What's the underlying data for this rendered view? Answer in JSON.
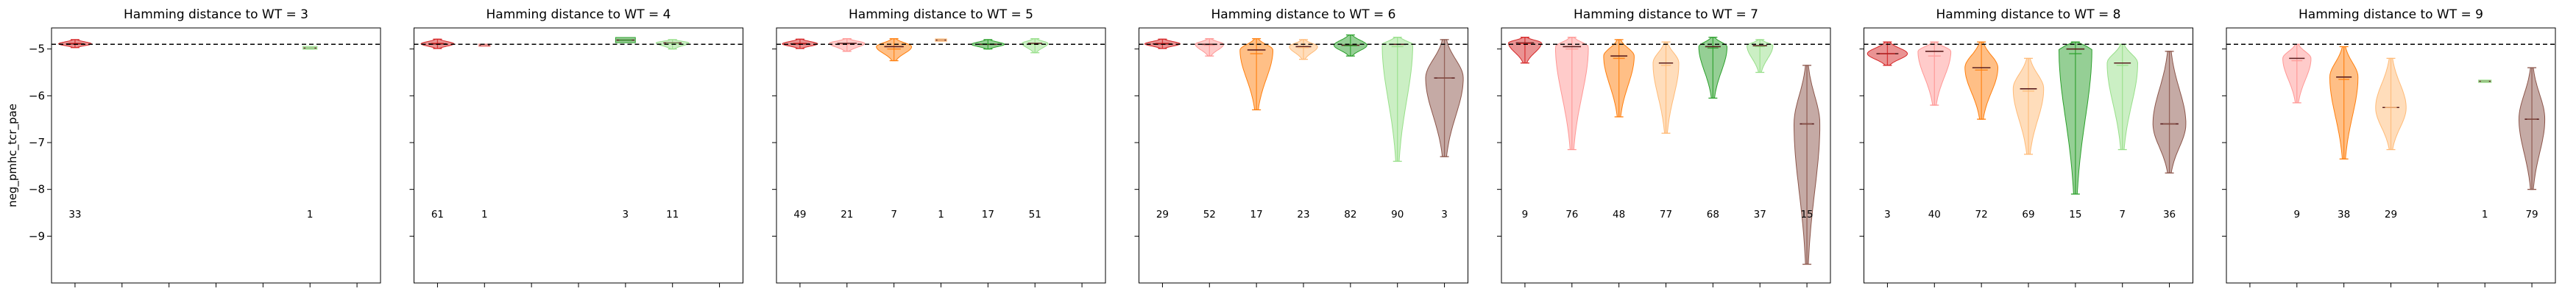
{
  "chart_data": {
    "type": "violin",
    "ylabel": "neg_pmhc_tcr_pae",
    "ylim": [
      -10,
      -4.55
    ],
    "yticks": [
      -9,
      -8,
      -7,
      -6,
      -5
    ],
    "reference_line": -4.9,
    "colors": [
      "#d62728",
      "#ff9896",
      "#ff7f0e",
      "#ffbb78",
      "#2ca02c",
      "#98df8a",
      "#8c564b"
    ],
    "panels": [
      {
        "title": "Hamming distance to WT = 3",
        "groups": [
          {
            "slot": 0,
            "count": "33",
            "min": -4.97,
            "max": -4.8,
            "median": -4.89,
            "mean": -4.88,
            "width": 0.7
          },
          {
            "slot": 5,
            "count": "1",
            "min": -4.99,
            "max": -4.96,
            "median": -4.98,
            "mean": -4.98,
            "width": 0.5
          }
        ]
      },
      {
        "title": "Hamming distance to WT = 4",
        "groups": [
          {
            "slot": 0,
            "count": "61",
            "min": -4.99,
            "max": -4.79,
            "median": -4.89,
            "mean": -4.88,
            "width": 0.7
          },
          {
            "slot": 1,
            "count": "1",
            "min": -4.93,
            "max": -4.91,
            "median": -4.92,
            "mean": -4.92,
            "width": 0.4
          },
          {
            "slot": 4,
            "count": "3",
            "min": -4.85,
            "max": -4.77,
            "median": -4.81,
            "mean": -4.81,
            "width": 0.7
          },
          {
            "slot": 5,
            "count": "11",
            "min": -5.0,
            "max": -4.8,
            "median": -4.87,
            "mean": -4.88,
            "width": 0.7
          }
        ]
      },
      {
        "title": "Hamming distance to WT = 5",
        "groups": [
          {
            "slot": 0,
            "count": "49",
            "min": -4.99,
            "max": -4.79,
            "median": -4.89,
            "mean": -4.88,
            "width": 0.75
          },
          {
            "slot": 1,
            "count": "21",
            "min": -5.05,
            "max": -4.78,
            "median": -4.88,
            "mean": -4.9,
            "width": 0.75
          },
          {
            "slot": 2,
            "count": "7",
            "min": -5.25,
            "max": -4.78,
            "median": -4.95,
            "mean": -5.0,
            "width": 0.75
          },
          {
            "slot": 3,
            "count": "1",
            "min": -4.82,
            "max": -4.8,
            "median": -4.81,
            "mean": -4.81,
            "width": 0.4
          },
          {
            "slot": 4,
            "count": "17",
            "min": -5.0,
            "max": -4.8,
            "median": -4.9,
            "mean": -4.89,
            "width": 0.7
          },
          {
            "slot": 5,
            "count": "51",
            "min": -5.08,
            "max": -4.78,
            "median": -4.88,
            "mean": -4.9,
            "width": 0.55
          }
        ]
      },
      {
        "title": "Hamming distance to WT = 6",
        "groups": [
          {
            "slot": 0,
            "count": "29",
            "min": -4.99,
            "max": -4.79,
            "median": -4.89,
            "mean": -4.88,
            "width": 0.75
          },
          {
            "slot": 1,
            "count": "52",
            "min": -5.15,
            "max": -4.78,
            "median": -4.9,
            "mean": -4.92,
            "width": 0.6
          },
          {
            "slot": 2,
            "count": "17",
            "min": -6.3,
            "max": -4.78,
            "median": -5.02,
            "mean": -5.1,
            "width": 0.7
          },
          {
            "slot": 3,
            "count": "23",
            "min": -5.22,
            "max": -4.8,
            "median": -4.95,
            "mean": -4.97,
            "width": 0.6
          },
          {
            "slot": 4,
            "count": "82",
            "min": -5.15,
            "max": -4.7,
            "median": -4.92,
            "mean": -4.93,
            "width": 0.7
          },
          {
            "slot": 5,
            "count": "90",
            "min": -7.4,
            "max": -4.75,
            "median": -4.9,
            "mean": -4.95,
            "width": 0.65
          },
          {
            "slot": 6,
            "count": "3",
            "min": -7.3,
            "max": -4.8,
            "median": -5.62,
            "mean": -5.62,
            "width": 0.8
          }
        ]
      },
      {
        "title": "Hamming distance to WT = 7",
        "groups": [
          {
            "slot": 0,
            "count": "9",
            "min": -5.3,
            "max": -4.75,
            "median": -4.87,
            "mean": -4.88,
            "width": 0.7
          },
          {
            "slot": 1,
            "count": "76",
            "min": -7.15,
            "max": -4.75,
            "median": -4.95,
            "mean": -5.0,
            "width": 0.7
          },
          {
            "slot": 2,
            "count": "48",
            "min": -6.45,
            "max": -4.8,
            "median": -5.15,
            "mean": -5.2,
            "width": 0.65
          },
          {
            "slot": 3,
            "count": "77",
            "min": -6.8,
            "max": -4.85,
            "median": -5.3,
            "mean": -5.35,
            "width": 0.55
          },
          {
            "slot": 4,
            "count": "68",
            "min": -6.05,
            "max": -4.75,
            "median": -4.95,
            "mean": -4.98,
            "width": 0.6
          },
          {
            "slot": 5,
            "count": "37",
            "min": -5.5,
            "max": -4.8,
            "median": -4.93,
            "mean": -4.95,
            "width": 0.55
          },
          {
            "slot": 6,
            "count": "15",
            "min": -9.6,
            "max": -5.35,
            "median": -6.6,
            "mean": -6.6,
            "width": 0.55
          }
        ]
      },
      {
        "title": "Hamming distance to WT = 8",
        "groups": [
          {
            "slot": 0,
            "count": "3",
            "min": -5.35,
            "max": -4.85,
            "median": -5.1,
            "mean": -5.1,
            "width": 0.85
          },
          {
            "slot": 1,
            "count": "40",
            "min": -6.2,
            "max": -4.85,
            "median": -5.05,
            "mean": -5.15,
            "width": 0.7
          },
          {
            "slot": 2,
            "count": "72",
            "min": -6.5,
            "max": -4.85,
            "median": -5.4,
            "mean": -5.45,
            "width": 0.7
          },
          {
            "slot": 3,
            "count": "69",
            "min": -7.25,
            "max": -5.2,
            "median": -5.85,
            "mean": -5.9,
            "width": 0.65
          },
          {
            "slot": 4,
            "count": "15",
            "min": -8.1,
            "max": -4.85,
            "median": -5.0,
            "mean": -5.1,
            "width": 0.7
          },
          {
            "slot": 5,
            "count": "7",
            "min": -7.15,
            "max": -4.9,
            "median": -5.3,
            "mean": -5.35,
            "width": 0.65
          },
          {
            "slot": 6,
            "count": "36",
            "min": -7.65,
            "max": -5.05,
            "median": -6.6,
            "mean": -6.6,
            "width": 0.7
          }
        ]
      },
      {
        "title": "Hamming distance to WT = 9",
        "groups": [
          {
            "slot": 1,
            "count": "9",
            "min": -6.15,
            "max": -4.9,
            "median": -5.2,
            "mean": -5.25,
            "width": 0.6
          },
          {
            "slot": 2,
            "count": "38",
            "min": -7.35,
            "max": -4.95,
            "median": -5.6,
            "mean": -5.65,
            "width": 0.6
          },
          {
            "slot": 3,
            "count": "29",
            "min": -7.15,
            "max": -5.2,
            "median": -6.25,
            "mean": -6.25,
            "width": 0.65
          },
          {
            "slot": 5,
            "count": "1",
            "min": -5.7,
            "max": -5.68,
            "median": -5.69,
            "mean": -5.69,
            "width": 0.45
          },
          {
            "slot": 6,
            "count": "79",
            "min": -8.0,
            "max": -5.4,
            "median": -6.5,
            "mean": -6.5,
            "width": 0.55
          }
        ]
      }
    ]
  }
}
